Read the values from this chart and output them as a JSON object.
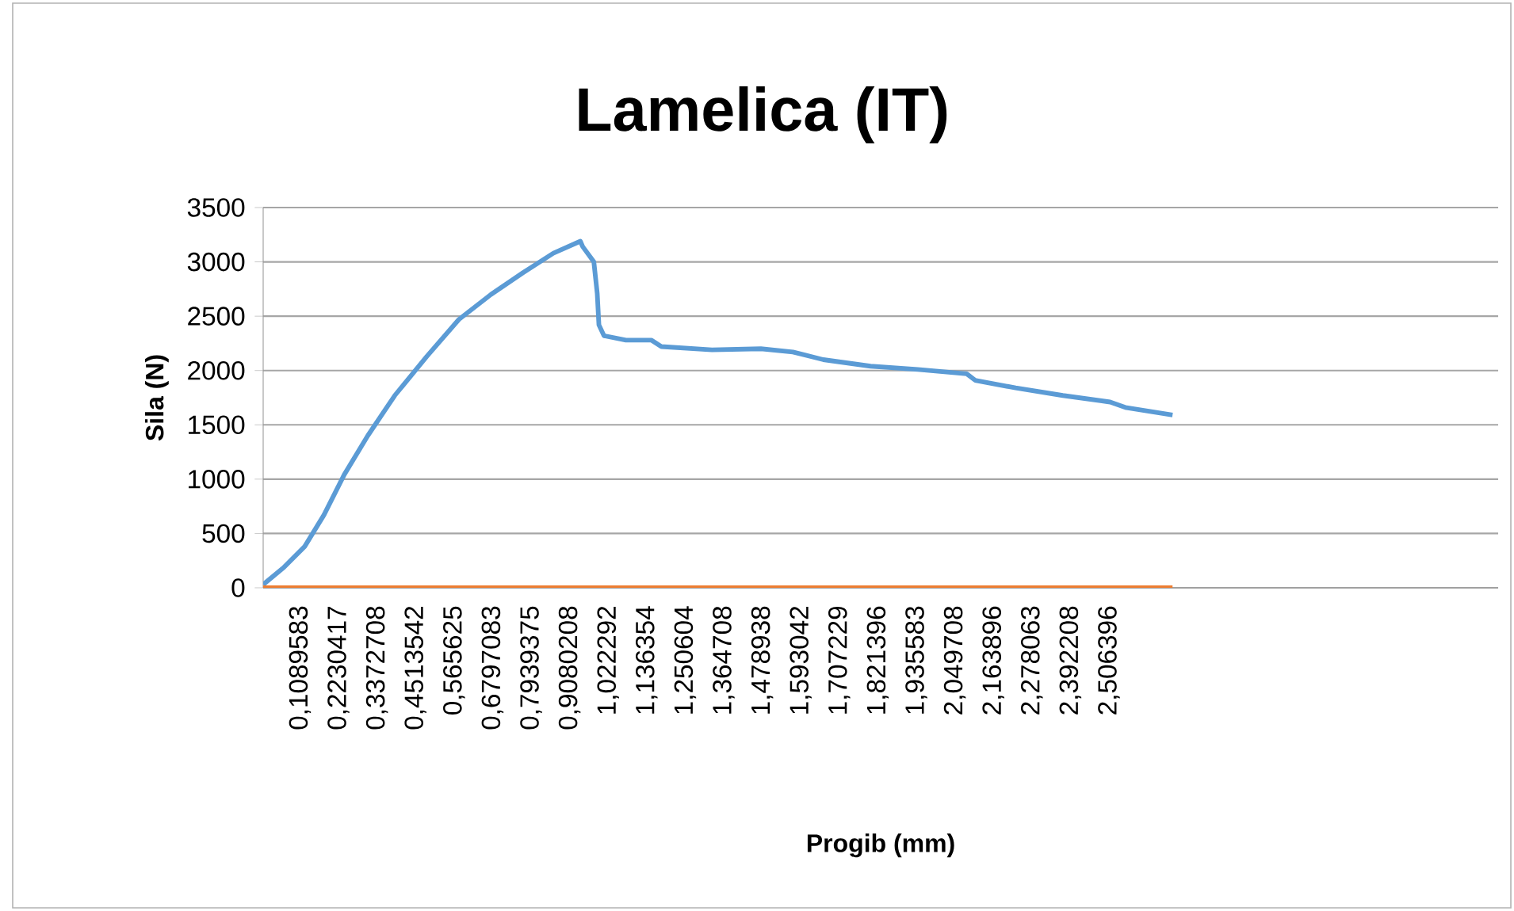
{
  "chart_data": {
    "type": "line",
    "title": "Lamelica (IT)",
    "xlabel": "Progib (mm)",
    "ylabel": "Sila (N)",
    "xlim": [
      0,
      3.66
    ],
    "ylim": [
      0,
      3500
    ],
    "xticks": [
      {
        "value": 0.1089583,
        "label": "0,1089583"
      },
      {
        "value": 0.2230417,
        "label": "0,2230417"
      },
      {
        "value": 0.3372708,
        "label": "0,3372708"
      },
      {
        "value": 0.4513542,
        "label": "0,4513542"
      },
      {
        "value": 0.565625,
        "label": "0,565625"
      },
      {
        "value": 0.6797083,
        "label": "0,6797083"
      },
      {
        "value": 0.7939375,
        "label": "0,7939375"
      },
      {
        "value": 0.9080208,
        "label": "0,9080208"
      },
      {
        "value": 1.022292,
        "label": "1,022292"
      },
      {
        "value": 1.136354,
        "label": "1,136354"
      },
      {
        "value": 1.250604,
        "label": "1,250604"
      },
      {
        "value": 1.364708,
        "label": "1,364708"
      },
      {
        "value": 1.478938,
        "label": "1,478938"
      },
      {
        "value": 1.593042,
        "label": "1,593042"
      },
      {
        "value": 1.707229,
        "label": "1,707229"
      },
      {
        "value": 1.821396,
        "label": "1,821396"
      },
      {
        "value": 1.935583,
        "label": "1,935583"
      },
      {
        "value": 2.049708,
        "label": "2,049708"
      },
      {
        "value": 2.163896,
        "label": "2,163896"
      },
      {
        "value": 2.278063,
        "label": "2,278063"
      },
      {
        "value": 2.392208,
        "label": "2,392208"
      },
      {
        "value": 2.506396,
        "label": "2,506396"
      }
    ],
    "yticks": [
      0,
      500,
      1000,
      1500,
      2000,
      2500,
      3000,
      3500
    ],
    "grid": "y",
    "marker": "none",
    "line_style": "solid",
    "series": [
      {
        "color": "#5b9bd5",
        "x": [
          0,
          0.062,
          0.123,
          0.18,
          0.24,
          0.31,
          0.39,
          0.485,
          0.58,
          0.675,
          0.77,
          0.86,
          0.94,
          0.947,
          0.98,
          0.99,
          0.995,
          1.01,
          1.075,
          1.15,
          1.18,
          1.33,
          1.475,
          1.57,
          1.66,
          1.8,
          1.94,
          2.085,
          2.11,
          2.23,
          2.37,
          2.51,
          2.555,
          2.695
        ],
        "values": [
          30,
          190,
          380,
          670,
          1040,
          1400,
          1770,
          2130,
          2470,
          2700,
          2900,
          3080,
          3190,
          3140,
          3000,
          2710,
          2420,
          2320,
          2280,
          2280,
          2220,
          2190,
          2200,
          2170,
          2100,
          2040,
          2010,
          1970,
          1910,
          1840,
          1770,
          1710,
          1660,
          1590
        ]
      },
      {
        "color": "#ed7d31",
        "x": [
          0,
          2.695
        ],
        "values": [
          0,
          0
        ]
      }
    ]
  }
}
